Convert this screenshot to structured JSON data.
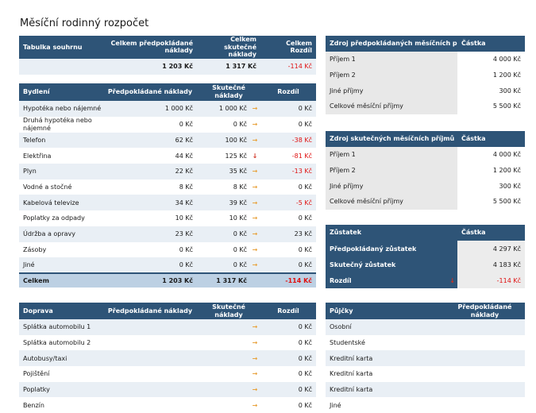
{
  "title": "Měsíční rodinný rozpočet",
  "summary": {
    "h1": "Tabulka souhrnu",
    "h2": "Celkem předpokládané náklady",
    "h3": "Celkem skutečné náklady",
    "h4": "Celkem Rozdíl",
    "planned": "1 203 Kč",
    "actual": "1 317 Kč",
    "diff": "-114 Kč"
  },
  "housing": {
    "h1": "Bydlení",
    "h2": "Předpokládané náklady",
    "h3": "Skutečné náklady",
    "h4": "Rozdíl",
    "rows": [
      {
        "label": "Hypotéka nebo nájemné",
        "planned": "1 000 Kč",
        "actual": "1 000 Kč",
        "arrow": "→",
        "diff": "0 Kč"
      },
      {
        "label": "Druhá hypotéka nebo nájemné",
        "planned": "0 Kč",
        "actual": "0 Kč",
        "arrow": "→",
        "diff": "0 Kč"
      },
      {
        "label": "Telefon",
        "planned": "62 Kč",
        "actual": "100 Kč",
        "arrow": "→",
        "diff": "-38 Kč"
      },
      {
        "label": "Elektřina",
        "planned": "44 Kč",
        "actual": "125 Kč",
        "arrow": "↓",
        "diff": "-81 Kč"
      },
      {
        "label": "Plyn",
        "planned": "22 Kč",
        "actual": "35 Kč",
        "arrow": "→",
        "diff": "-13 Kč"
      },
      {
        "label": "Vodné a stočné",
        "planned": "8 Kč",
        "actual": "8 Kč",
        "arrow": "→",
        "diff": "0 Kč"
      },
      {
        "label": "Kabelová televize",
        "planned": "34 Kč",
        "actual": "39 Kč",
        "arrow": "→",
        "diff": "-5 Kč"
      },
      {
        "label": "Poplatky za odpady",
        "planned": "10 Kč",
        "actual": "10 Kč",
        "arrow": "→",
        "diff": "0 Kč"
      },
      {
        "label": "Údržba a opravy",
        "planned": "23 Kč",
        "actual": "0 Kč",
        "arrow": "→",
        "diff": "23 Kč"
      },
      {
        "label": "Zásoby",
        "planned": "0 Kč",
        "actual": "0 Kč",
        "arrow": "→",
        "diff": "0 Kč"
      },
      {
        "label": "Jiné",
        "planned": "0 Kč",
        "actual": "0 Kč",
        "arrow": "→",
        "diff": "0 Kč"
      }
    ],
    "total": {
      "label": "Celkem",
      "planned": "1 203 Kč",
      "actual": "1 317 Kč",
      "diff": "-114 Kč"
    }
  },
  "transport": {
    "h1": "Doprava",
    "h2": "Předpokládané náklady",
    "h3": "Skutečné náklady",
    "h4": "Rozdíl",
    "rows": [
      {
        "label": "Splátka automobilu 1",
        "arrow": "→",
        "diff": "0 Kč"
      },
      {
        "label": "Splátka automobilu 2",
        "arrow": "→",
        "diff": "0 Kč"
      },
      {
        "label": "Autobusy/taxi",
        "arrow": "→",
        "diff": "0 Kč"
      },
      {
        "label": "Pojištění",
        "arrow": "→",
        "diff": "0 Kč"
      },
      {
        "label": "Poplatky",
        "arrow": "→",
        "diff": "0 Kč"
      },
      {
        "label": "Benzín",
        "arrow": "→",
        "diff": "0 Kč"
      }
    ]
  },
  "planned_income": {
    "h1": "Zdroj předpokládaných měsíčních příjmů",
    "h2": "Částka",
    "rows": [
      {
        "label": "Příjem 1",
        "value": "4 000 Kč"
      },
      {
        "label": "Příjem 2",
        "value": "1 200 Kč"
      },
      {
        "label": "Jiné příjmy",
        "value": "300 Kč"
      },
      {
        "label": "Celkové měsíční příjmy",
        "value": "5 500 Kč"
      }
    ]
  },
  "actual_income": {
    "h1": "Zdroj skutečných měsíčních příjmů",
    "h2": "Částka",
    "rows": [
      {
        "label": "Příjem 1",
        "value": "4 000 Kč"
      },
      {
        "label": "Příjem 2",
        "value": "1 200 Kč"
      },
      {
        "label": "Jiné příjmy",
        "value": "300 Kč"
      },
      {
        "label": "Celkové měsíční příjmy",
        "value": "5 500 Kč"
      }
    ]
  },
  "balance": {
    "h1": "Zůstatek",
    "h2": "Částka",
    "planned_label": "Předpokládaný zůstatek",
    "planned_value": "4 297 Kč",
    "actual_label": "Skutečný zůstatek",
    "actual_value": "4 183 Kč",
    "diff_label": "Rozdíl",
    "diff_arrow": "↓",
    "diff_value": "-114 Kč"
  },
  "loans": {
    "h1": "Půjčky",
    "h2": "Předpokládané náklady",
    "rows": [
      "Osobní",
      "Studentské",
      "Kreditní karta",
      "Kreditní karta",
      "Kreditní karta",
      "Jiné"
    ]
  }
}
